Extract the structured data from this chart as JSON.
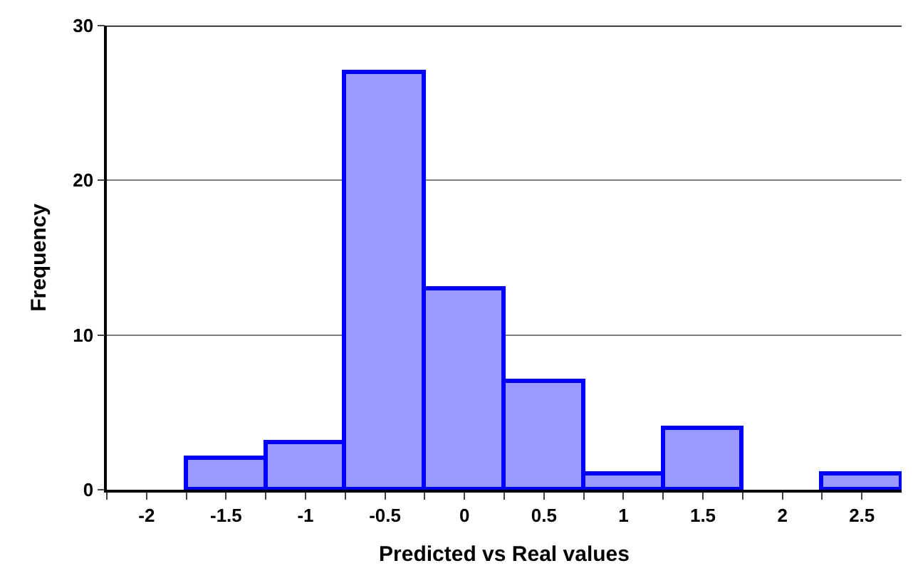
{
  "chart_data": {
    "type": "histogram",
    "xlabel": "Predicted vs Real values",
    "ylabel": "Frequency",
    "bins": [
      -2.25,
      -1.75,
      -1.25,
      -0.75,
      -0.25,
      0.25,
      0.75,
      1.25,
      1.75,
      2.25,
      2.75
    ],
    "values": [
      0,
      2,
      3,
      27,
      13,
      7,
      1,
      4,
      0,
      1
    ],
    "color": "#9999ff",
    "xlim": [
      -2.25,
      2.75
    ],
    "ylim": [
      0,
      30
    ],
    "xticks": [
      -2,
      -1.5,
      -1,
      -0.5,
      0,
      0.5,
      1,
      1.5,
      2,
      2.5,
      {
        "value": -2.25,
        "label": null
      },
      {
        "value": -1.75,
        "label": null
      },
      {
        "value": -1.25,
        "label": null
      },
      {
        "value": -0.75,
        "label": null
      },
      {
        "value": -0.25,
        "label": null
      },
      {
        "value": 0.25,
        "label": null
      },
      {
        "value": 0.75,
        "label": null
      },
      {
        "value": 1.25,
        "label": null
      },
      {
        "value": 1.75,
        "label": null
      },
      {
        "value": 2.25,
        "label": null
      }
    ],
    "yticks": [
      0,
      10,
      20,
      30
    ],
    "grid": "y"
  }
}
